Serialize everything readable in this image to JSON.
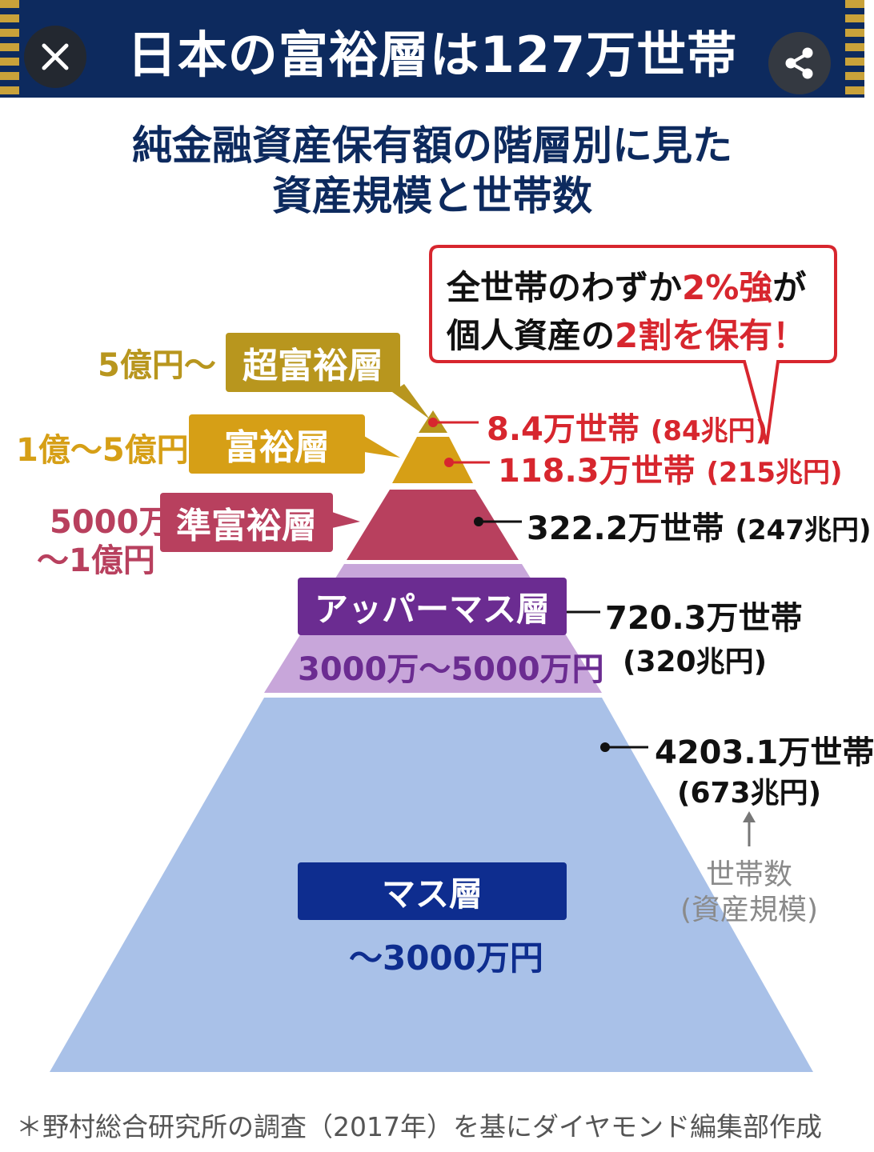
{
  "header": {
    "title": "日本の富裕層は127万世帯",
    "close_icon": "close-icon",
    "share_icon": "share-icon"
  },
  "subtitle": {
    "line1": "純金融資産保有額の階層別に見た",
    "line2": "資産規模と世帯数"
  },
  "callout": {
    "line1_prefix": "全世帯のわずか",
    "line1_highlight": "2%強",
    "line1_suffix": "が",
    "line2_prefix": "個人資産の",
    "line2_highlight": "2割を保有！"
  },
  "tiers": [
    {
      "name": "超富裕層",
      "range": "5億円〜",
      "households": "8.4万世帯",
      "assets": "(84兆円)",
      "color": "#b8961e"
    },
    {
      "name": "富裕層",
      "range": "1億〜5億円",
      "households": "118.3万世帯",
      "assets": "(215兆円)",
      "color": "#d69f16"
    },
    {
      "name": "準富裕層",
      "range_line1": "5000万",
      "range_line2": "〜1億円",
      "households": "322.2万世帯",
      "assets": "(247兆円)",
      "color": "#b8405e"
    },
    {
      "name": "アッパーマス層",
      "range": "3000万〜5000万円",
      "households": "720.3万世帯",
      "assets": "(320兆円)",
      "color": "#6b2c91"
    },
    {
      "name": "マス層",
      "range": "〜3000万円",
      "households": "4203.1万世帯",
      "assets": "(673兆円)",
      "color": "#0e2d8f"
    }
  ],
  "legend": {
    "line1": "世帯数",
    "line2": "(資産規模)"
  },
  "footnote": "＊野村総合研究所の調査（2017年）を基にダイヤモンド編集部作成"
}
